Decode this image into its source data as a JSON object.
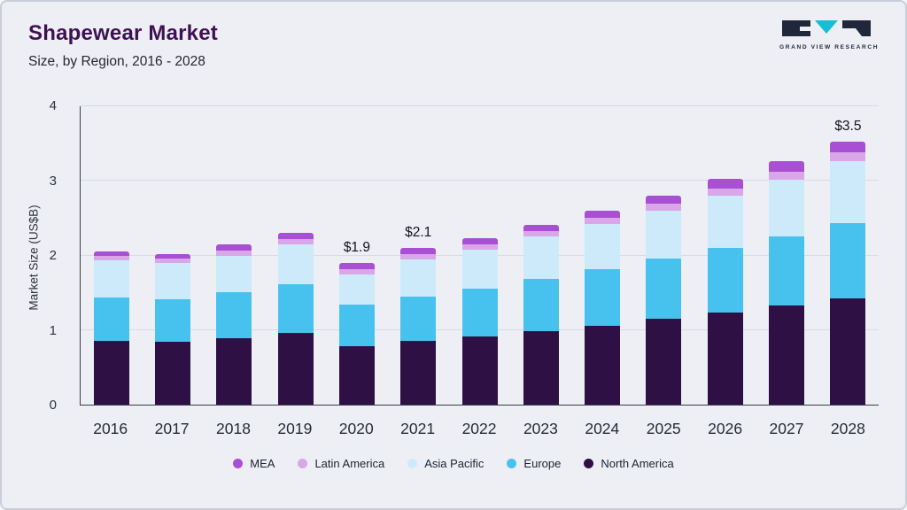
{
  "header": {
    "title": "Shapewear Market",
    "subtitle": "Size, by Region, 2016 - 2028"
  },
  "logo": {
    "text": "GRAND VIEW RESEARCH",
    "dark_color": "#20273a",
    "accent_color": "#14bfd6"
  },
  "chart_data": {
    "type": "bar",
    "stacked": true,
    "title": "Shapewear Market Size, by Region, 2016 - 2028",
    "ylabel": "Market Size (US$B)",
    "ylim": [
      0,
      4
    ],
    "yticks": [
      0,
      1,
      2,
      3,
      4
    ],
    "grid": true,
    "legend_position": "bottom",
    "categories": [
      "2016",
      "2017",
      "2018",
      "2019",
      "2020",
      "2021",
      "2022",
      "2023",
      "2024",
      "2025",
      "2026",
      "2027",
      "2028"
    ],
    "series": [
      {
        "name": "North America",
        "color": "#2e1045",
        "values": [
          0.85,
          0.84,
          0.89,
          0.96,
          0.78,
          0.85,
          0.92,
          0.98,
          1.06,
          1.15,
          1.23,
          1.33,
          1.43
        ]
      },
      {
        "name": "Europe",
        "color": "#47c2ee",
        "values": [
          0.59,
          0.57,
          0.62,
          0.66,
          0.56,
          0.6,
          0.64,
          0.7,
          0.76,
          0.81,
          0.87,
          0.93,
          1.0
        ]
      },
      {
        "name": "Asia Pacific",
        "color": "#cdeafb",
        "values": [
          0.49,
          0.49,
          0.49,
          0.53,
          0.41,
          0.5,
          0.52,
          0.58,
          0.6,
          0.64,
          0.7,
          0.76,
          0.84
        ]
      },
      {
        "name": "Latin America",
        "color": "#d9a6e8",
        "values": [
          0.06,
          0.06,
          0.07,
          0.07,
          0.07,
          0.07,
          0.07,
          0.07,
          0.08,
          0.09,
          0.1,
          0.1,
          0.11
        ]
      },
      {
        "name": "MEA",
        "color": "#a84fd4",
        "values": [
          0.06,
          0.06,
          0.08,
          0.08,
          0.08,
          0.08,
          0.08,
          0.08,
          0.1,
          0.11,
          0.13,
          0.15,
          0.14
        ]
      }
    ],
    "totals": [
      2.05,
      2.02,
      2.15,
      2.3,
      1.9,
      2.1,
      2.23,
      2.41,
      2.6,
      2.8,
      3.03,
      3.27,
      3.52
    ],
    "annotations": [
      {
        "category": "2020",
        "text": "$1.9"
      },
      {
        "category": "2021",
        "text": "$2.1"
      },
      {
        "category": "2028",
        "text": "$3.5"
      }
    ],
    "legend_order": [
      "MEA",
      "Latin America",
      "Asia Pacific",
      "Europe",
      "North America"
    ]
  }
}
